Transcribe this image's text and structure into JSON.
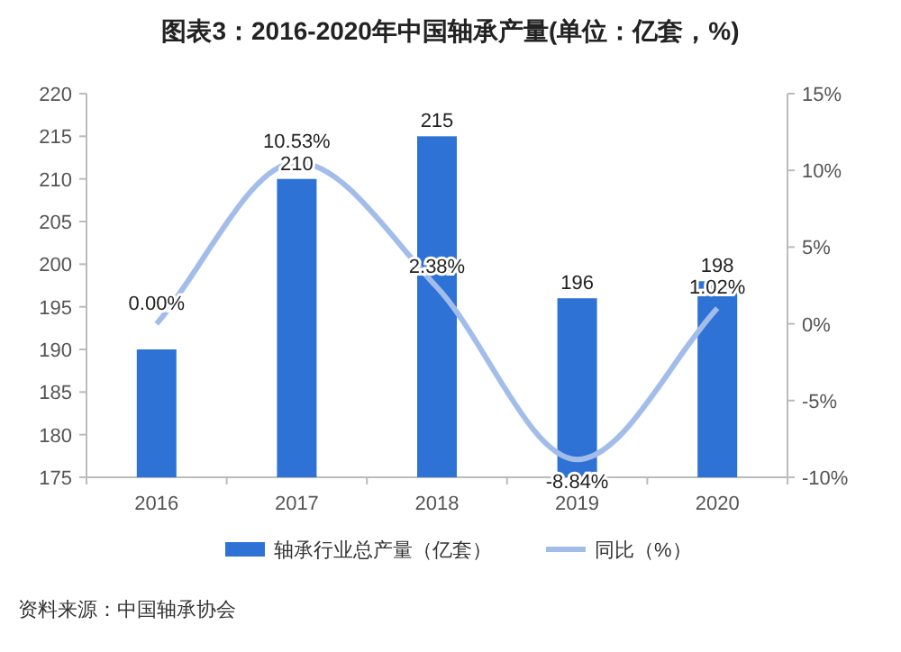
{
  "chart_data": {
    "type": "bar",
    "title": "图表3：2016-2020年中国轴承产量(单位：亿套，%)",
    "categories": [
      "2016",
      "2017",
      "2018",
      "2019",
      "2020"
    ],
    "series": [
      {
        "name": "轴承行业总产量（亿套）",
        "color": "#2f72d6",
        "values": [
          190,
          210,
          215,
          196,
          198
        ],
        "value_labels": [
          null,
          "210",
          "215",
          "196",
          "198"
        ]
      },
      {
        "name": "同比（%）",
        "type": "line",
        "axis": "y2",
        "color": "#a3bdea",
        "values": [
          0.0,
          10.53,
          2.38,
          -8.84,
          1.02
        ],
        "value_labels": [
          "0.00%",
          "10.53%",
          "2.38%",
          "-8.84%",
          "1.02%"
        ]
      }
    ],
    "ylim": [
      175,
      220
    ],
    "yticks": [
      175,
      180,
      185,
      190,
      195,
      200,
      205,
      210,
      215,
      220
    ],
    "y2lim": [
      -10,
      15
    ],
    "y2ticks": [
      {
        "value": -10,
        "label": "-10%"
      },
      {
        "value": -5,
        "label": "-5%"
      },
      {
        "value": 0,
        "label": "0%"
      },
      {
        "value": 5,
        "label": "5%"
      },
      {
        "value": 10,
        "label": "10%"
      },
      {
        "value": 15,
        "label": "15%"
      }
    ],
    "legend": "bottom",
    "annotations": [
      "资料来源：中国轴承协会"
    ]
  }
}
